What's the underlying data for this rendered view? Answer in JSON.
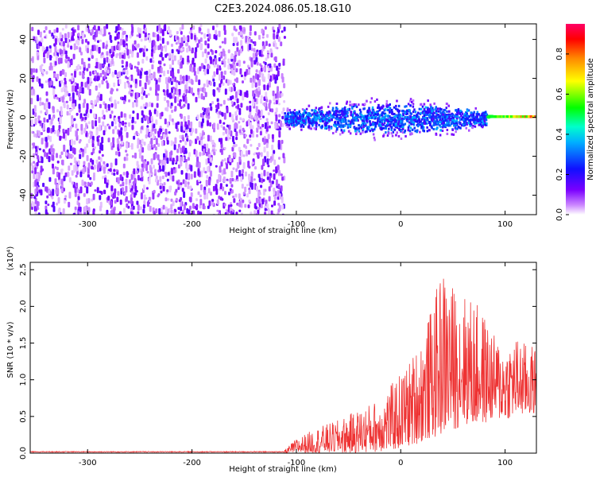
{
  "title": "C2E3.2024.086.05.18.G10",
  "chart_data": [
    {
      "type": "heatmap",
      "xlabel": "Height of straight line (km)",
      "ylabel": "Frequency (Hz)",
      "xlim": [
        -355,
        130
      ],
      "ylim": [
        -50,
        48
      ],
      "xticks": [
        -300,
        -200,
        -100,
        0,
        100
      ],
      "yticks": [
        -40,
        -20,
        0,
        20,
        40
      ],
      "colorbar": {
        "label": "Normalized spectral amplitude",
        "range": [
          0,
          0.95
        ],
        "ticks": [
          "0.0",
          "0.2",
          "0.4",
          "0.6",
          "0.8"
        ],
        "colormap": "rainbow (white-violet-blue-cyan-green-yellow-red-magenta)"
      },
      "regions": [
        {
          "x_range": [
            -355,
            -112
          ],
          "freq_range": [
            -50,
            48
          ],
          "amplitude": "low (0.0-0.15), diffuse noise across full band"
        },
        {
          "x_range": [
            -112,
            130
          ],
          "freq_range": [
            -8,
            8
          ],
          "amplitude": "0.2-0.4 band centered near 0 Hz, rising to 0.8-0.95 near x=100-130 at ~1 Hz"
        }
      ],
      "grid": false
    },
    {
      "type": "line",
      "xlabel": "Height of straight line (km)",
      "ylabel": "SNR (10 * v/v)",
      "scale_label": "(x10⁴)",
      "xlim": [
        -355,
        130
      ],
      "ylim": [
        0,
        2.6
      ],
      "xticks": [
        -300,
        -200,
        -100,
        0,
        100
      ],
      "yticks": [
        "0.0",
        "0.5",
        "1.0",
        "1.5",
        "2.0",
        "2.5"
      ],
      "series": [
        {
          "color": "#ee3333",
          "envelope": {
            "x": [
              -355,
              -120,
              -110,
              -100,
              -80,
              -60,
              -40,
              -20,
              0,
              10,
              20,
              30,
              40,
              50,
              60,
              70,
              80,
              90,
              100,
              110,
              120,
              130
            ],
            "upper": [
              0.03,
              0.03,
              0.06,
              0.2,
              0.35,
              0.45,
              0.6,
              0.75,
              1.1,
              1.3,
              1.6,
              2.0,
              2.55,
              2.3,
              2.2,
              2.1,
              1.9,
              1.6,
              1.5,
              1.6,
              1.5,
              1.45
            ],
            "lower": [
              0.0,
              0.0,
              0.0,
              0.0,
              0.0,
              0.0,
              0.0,
              0.02,
              0.05,
              0.1,
              0.15,
              0.2,
              0.25,
              0.3,
              0.4,
              0.35,
              0.4,
              0.45,
              0.45,
              0.5,
              0.5,
              0.55
            ]
          }
        }
      ],
      "grid": false
    }
  ]
}
